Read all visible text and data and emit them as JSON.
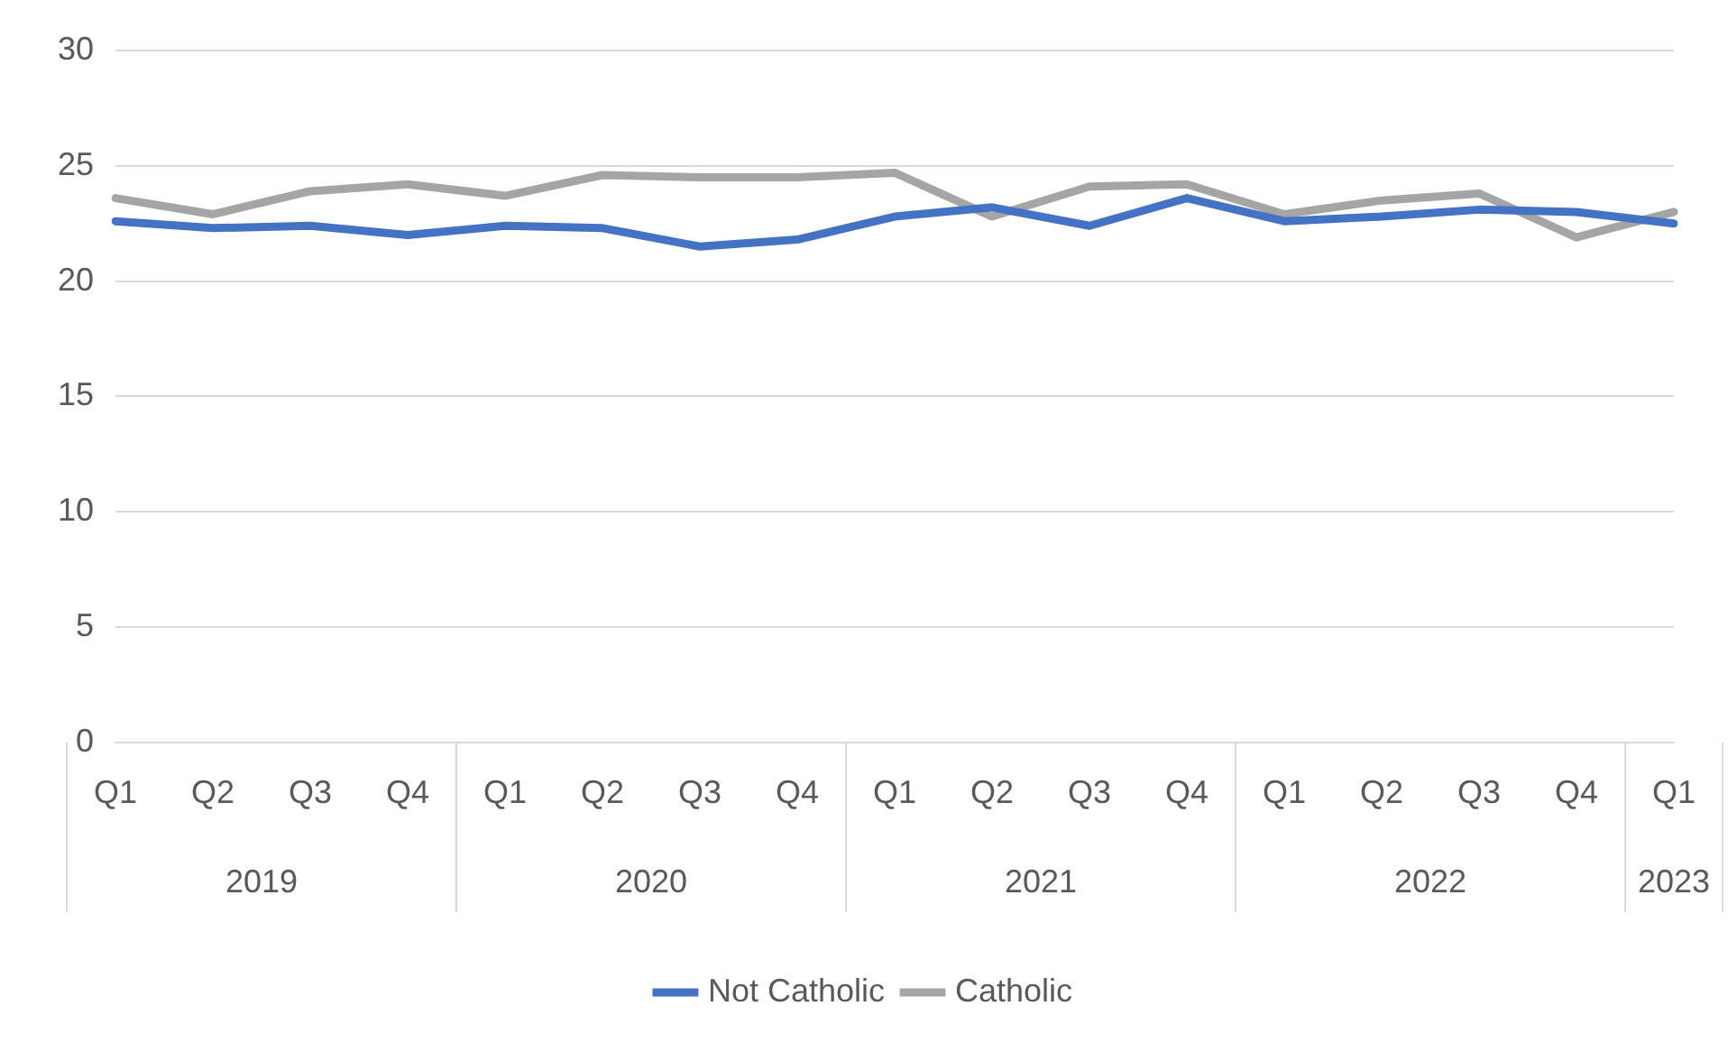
{
  "chart_data": {
    "type": "line",
    "categories": [
      "Q1",
      "Q2",
      "Q3",
      "Q4",
      "Q1",
      "Q2",
      "Q3",
      "Q4",
      "Q1",
      "Q2",
      "Q3",
      "Q4",
      "Q1",
      "Q2",
      "Q3",
      "Q4",
      "Q1"
    ],
    "series": [
      {
        "name": "Not Catholic",
        "color": "#4472c4",
        "values": [
          22.6,
          22.3,
          22.4,
          22.0,
          22.4,
          22.3,
          21.5,
          21.8,
          22.8,
          23.2,
          22.4,
          23.6,
          22.6,
          22.8,
          23.1,
          23.0,
          22.5
        ]
      },
      {
        "name": "Catholic",
        "color": "#a5a5a5",
        "values": [
          23.6,
          22.9,
          23.9,
          24.2,
          23.7,
          24.6,
          24.5,
          24.5,
          24.7,
          22.8,
          24.1,
          24.2,
          22.9,
          23.5,
          23.8,
          21.9,
          23.0
        ]
      }
    ],
    "annotations": [
      "2019",
      "2020",
      "2021",
      "2022",
      "2023"
    ],
    "ylim": [
      0,
      30
    ],
    "yticks": [
      0,
      5,
      10,
      15,
      20,
      25,
      30
    ],
    "grid": "y",
    "legend": "bottom",
    "marker": "none",
    "line_style": "solid"
  }
}
